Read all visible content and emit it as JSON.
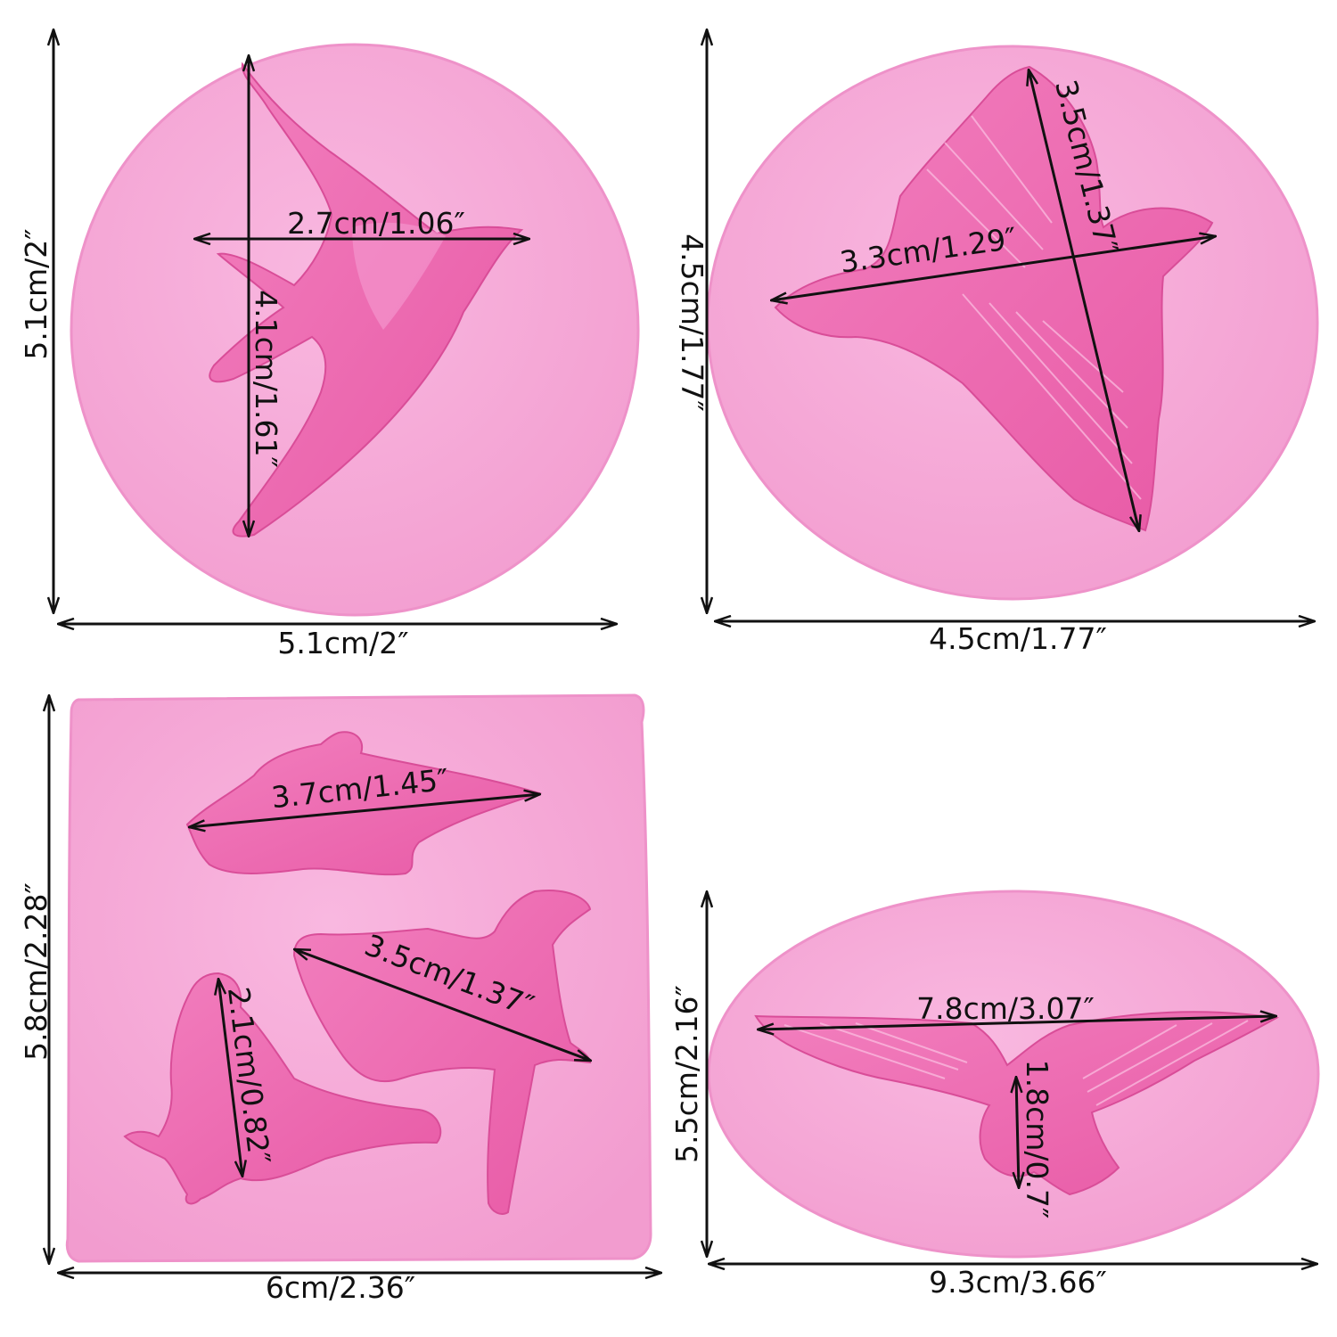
{
  "colors": {
    "mold": "#f6a9d8",
    "mold_edge": "#e98ac6",
    "cavity": "#f074b6",
    "cavity_deep": "#e2529e",
    "arrow": "#111111",
    "background": "#ffffff"
  },
  "molds": [
    {
      "shape": "round",
      "cavity": "swallow",
      "outer_width": "5.1cm/2″",
      "outer_height": "5.1cm/2″",
      "inner_width": "2.7cm/1.06″",
      "inner_height": "4.1cm/1.61″"
    },
    {
      "shape": "round",
      "cavity": "dove",
      "outer_width": "4.5cm/1.77″",
      "outer_height": "4.5cm/1.77″",
      "inner_width": "3.3cm/1.29″",
      "inner_height": "3.5cm/1.37″"
    },
    {
      "shape": "square",
      "cavity": "three birds",
      "outer_width": "6cm/2.36″",
      "outer_height": "5.8cm/2.28″",
      "bird_top": "3.7cm/1.45″",
      "bird_right": "3.5cm/1.37″",
      "bird_left": "2.1cm/0.82″"
    },
    {
      "shape": "oval",
      "cavity": "dove with spread wings",
      "outer_width": "9.3cm/3.66″",
      "outer_height": "5.5cm/2.16″",
      "inner_width": "7.8cm/3.07″",
      "inner_height": "1.8cm/0.7″"
    }
  ]
}
